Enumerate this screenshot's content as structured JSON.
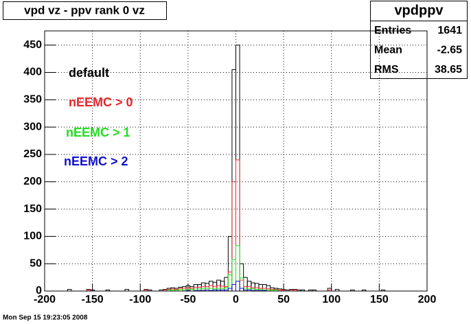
{
  "chart_data": {
    "type": "histogram",
    "title": "vpd vz - ppv rank 0 vz",
    "bins": [
      -200,
      -196,
      -192,
      -188,
      -184,
      -180,
      -176,
      -172,
      -168,
      -164,
      -160,
      -156,
      -152,
      -148,
      -144,
      -140,
      -136,
      -132,
      -128,
      -124,
      -120,
      -116,
      -112,
      -108,
      -104,
      -100,
      -96,
      -92,
      -88,
      -84,
      -80,
      -76,
      -72,
      -68,
      -64,
      -60,
      -56,
      -52,
      -48,
      -44,
      -40,
      -36,
      -32,
      -28,
      -24,
      -20,
      -16,
      -12,
      -8,
      -4,
      0,
      4,
      8,
      12,
      16,
      20,
      24,
      28,
      32,
      36,
      40,
      44,
      48,
      52,
      56,
      60,
      64,
      68,
      72,
      76,
      80,
      84,
      88,
      92,
      96,
      100,
      104,
      108,
      112,
      116,
      120,
      124,
      128,
      132,
      136,
      140,
      144,
      148,
      152,
      156,
      160,
      164,
      168,
      172,
      176,
      180,
      184,
      188,
      192,
      196,
      200
    ],
    "series": [
      {
        "name": "default",
        "color": "#000000",
        "values": [
          0,
          0,
          0,
          0,
          0,
          0,
          3,
          0,
          0,
          0,
          0,
          3,
          2,
          0,
          0,
          0,
          2,
          0,
          0,
          0,
          0,
          3,
          0,
          0,
          0,
          0,
          3,
          2,
          0,
          0,
          2,
          3,
          5,
          6,
          5,
          7,
          8,
          10,
          8,
          12,
          12,
          15,
          14,
          18,
          16,
          20,
          18,
          25,
          100,
          405,
          450,
          50,
          25,
          18,
          15,
          14,
          12,
          12,
          10,
          6,
          5,
          4,
          3,
          2,
          3,
          3,
          2,
          2,
          0,
          2,
          2,
          0,
          0,
          0,
          5,
          0,
          3,
          0,
          0,
          0,
          2,
          0,
          0,
          2,
          0,
          0,
          0,
          0,
          2,
          0,
          0,
          0,
          0,
          0,
          0,
          0,
          0,
          0,
          0,
          0
        ]
      },
      {
        "name": "nEEMC > 0",
        "color": "#e8262c",
        "values": [
          0,
          0,
          0,
          0,
          0,
          0,
          0,
          0,
          0,
          0,
          0,
          2,
          0,
          0,
          0,
          0,
          0,
          0,
          0,
          0,
          0,
          0,
          0,
          0,
          0,
          0,
          2,
          0,
          0,
          0,
          0,
          2,
          3,
          4,
          3,
          5,
          5,
          6,
          5,
          7,
          7,
          8,
          8,
          10,
          8,
          10,
          9,
          8,
          35,
          200,
          240,
          20,
          8,
          8,
          6,
          6,
          5,
          5,
          4,
          3,
          3,
          2,
          2,
          0,
          2,
          2,
          0,
          0,
          0,
          0,
          0,
          0,
          0,
          0,
          2,
          0,
          0,
          0,
          0,
          0,
          0,
          0,
          0,
          0,
          0,
          0,
          0,
          0,
          0,
          0,
          0,
          0,
          0,
          0,
          0,
          0,
          0,
          0,
          0,
          0
        ]
      },
      {
        "name": "nEEMC > 1",
        "color": "#22dd22",
        "values": [
          0,
          0,
          0,
          0,
          0,
          0,
          0,
          0,
          0,
          0,
          0,
          0,
          0,
          0,
          0,
          0,
          0,
          0,
          0,
          0,
          0,
          0,
          0,
          0,
          0,
          0,
          0,
          0,
          0,
          0,
          0,
          0,
          2,
          2,
          2,
          3,
          2,
          3,
          3,
          4,
          4,
          4,
          5,
          5,
          4,
          5,
          5,
          6,
          30,
          58,
          83,
          24,
          5,
          4,
          4,
          3,
          3,
          2,
          2,
          2,
          2,
          0,
          0,
          0,
          0,
          0,
          0,
          0,
          0,
          0,
          0,
          0,
          0,
          0,
          0,
          0,
          0,
          0,
          0,
          0,
          0,
          0,
          0,
          0,
          0,
          0,
          0,
          0,
          0,
          0,
          0,
          0,
          0,
          0,
          0,
          0,
          0,
          0,
          0,
          0
        ]
      },
      {
        "name": "nEEMC > 2",
        "color": "#1010cc",
        "values": [
          0,
          0,
          0,
          0,
          0,
          0,
          0,
          0,
          0,
          0,
          0,
          0,
          0,
          0,
          0,
          0,
          0,
          0,
          0,
          0,
          0,
          0,
          0,
          0,
          0,
          0,
          0,
          0,
          0,
          0,
          0,
          0,
          0,
          0,
          0,
          0,
          0,
          1,
          0,
          1,
          1,
          1,
          2,
          1,
          2,
          2,
          2,
          2,
          5,
          12,
          18,
          5,
          2,
          2,
          1,
          1,
          1,
          1,
          0,
          0,
          0,
          0,
          0,
          0,
          0,
          0,
          0,
          0,
          0,
          0,
          0,
          0,
          0,
          0,
          0,
          0,
          0,
          0,
          0,
          0,
          0,
          0,
          0,
          0,
          0,
          0,
          0,
          0,
          0,
          0,
          0,
          0,
          0,
          0,
          0,
          0,
          0,
          0,
          0,
          0
        ]
      }
    ],
    "xlim": [
      -200,
      200
    ],
    "ylim": [
      0,
      476
    ],
    "xticks": [
      -200,
      -150,
      -100,
      -50,
      0,
      50,
      100,
      150,
      200
    ],
    "yticks": [
      0,
      50,
      100,
      150,
      200,
      250,
      300,
      350,
      400,
      450
    ],
    "grid": true,
    "stats": {
      "title": "vpdppv",
      "rows": [
        {
          "label": "Entries",
          "value": 1641
        },
        {
          "label": "Mean",
          "value": -2.65
        },
        {
          "label": "RMS",
          "value": 38.65
        }
      ]
    },
    "timestamp": "Mon Sep 15 19:23:05 2008"
  }
}
